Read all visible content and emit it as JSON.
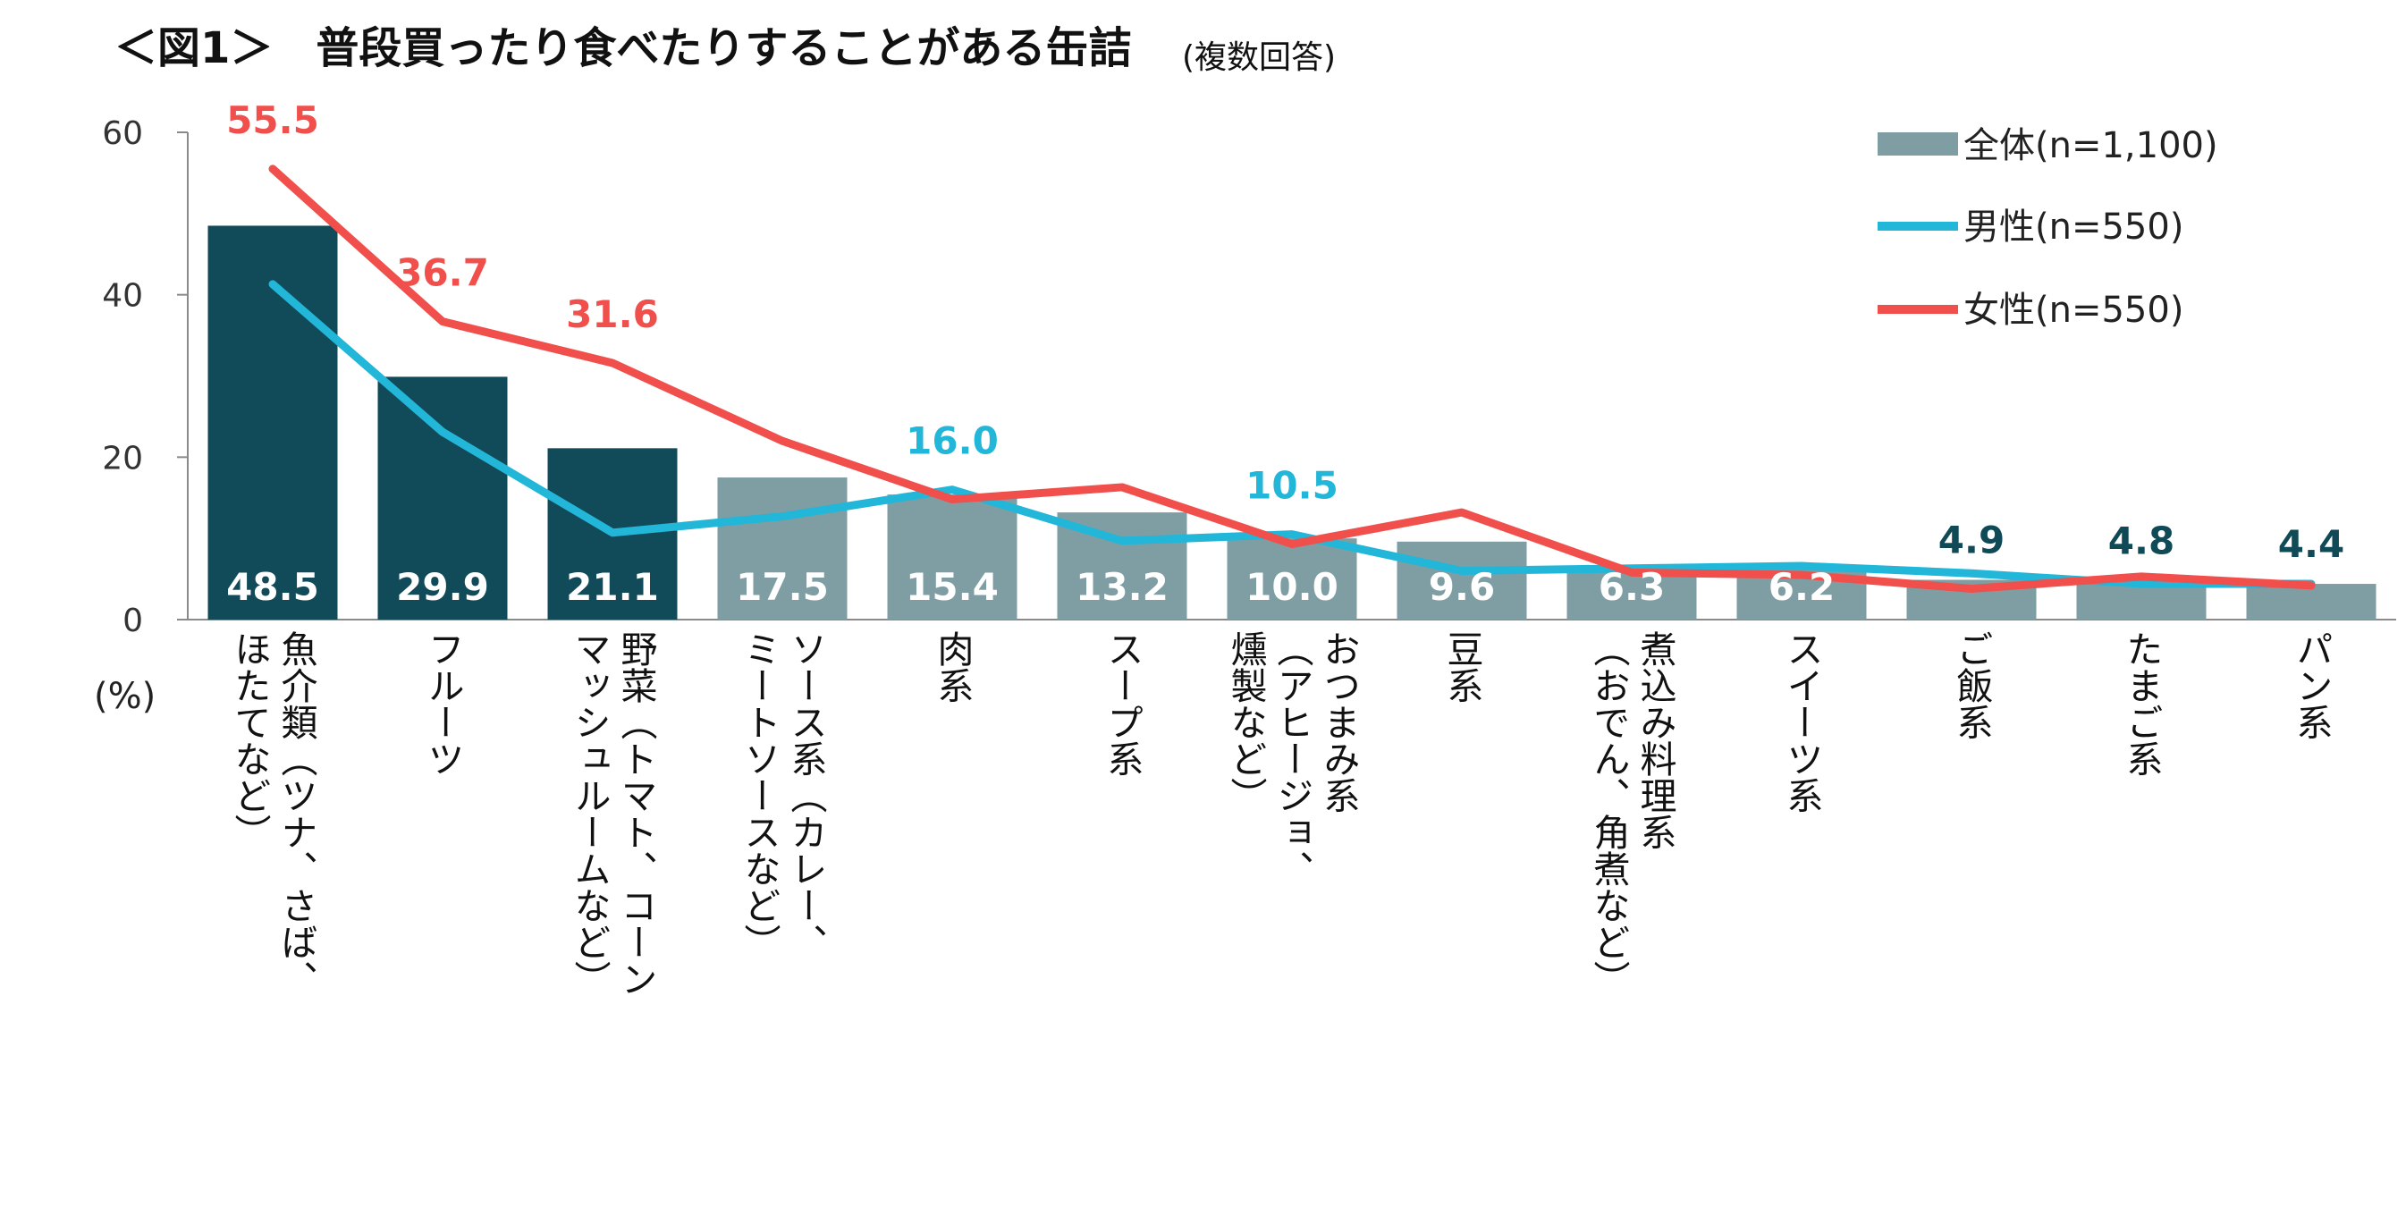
{
  "chart_data": {
    "type": "bar",
    "title": "＜図1＞　普段買ったり食べたりすることがある缶詰",
    "subtitle": "(複数回答)",
    "ylabel": "(%)",
    "ylim": [
      0,
      60
    ],
    "yticks": [
      0,
      20,
      40,
      60
    ],
    "categories": [
      [
        "魚介類（ツナ、さば、",
        "ほたてなど）"
      ],
      [
        "フルーツ"
      ],
      [
        "野菜（トマト、コーン",
        "マッシュルームなど）"
      ],
      [
        "ソース系（カレー、",
        "ミートソースなど）"
      ],
      [
        "肉系"
      ],
      [
        "スープ系"
      ],
      [
        "おつまみ系",
        "（アヒージョ、",
        "燻製など）"
      ],
      [
        "豆系"
      ],
      [
        "煮込み料理系",
        "（おでん、角煮など）"
      ],
      [
        "スイーツ系"
      ],
      [
        "ご飯系"
      ],
      [
        "たまご系"
      ],
      [
        "パン系"
      ]
    ],
    "series": [
      {
        "name": "全体(n=1,100)",
        "kind": "bar",
        "values": [
          48.5,
          29.9,
          21.1,
          17.5,
          15.4,
          13.2,
          10.0,
          9.6,
          6.3,
          6.2,
          4.9,
          4.8,
          4.4
        ],
        "labels": [
          "48.5",
          "29.9",
          "21.1",
          "17.5",
          "15.4",
          "13.2",
          "10.0",
          "9.6",
          "6.3",
          "6.2",
          "4.9",
          "4.8",
          "4.4"
        ],
        "highlight_count": 3,
        "color_highlight": "#114b59",
        "color": "#7f9ea4"
      },
      {
        "name": "男性(n=550)",
        "kind": "line",
        "color": "#22b6d8",
        "values": [
          41.3,
          23.1,
          10.7,
          12.7,
          16.0,
          9.7,
          10.5,
          6.0,
          6.3,
          6.6,
          5.7,
          4.4,
          4.4
        ],
        "shown_labels": [
          {
            "index": 4,
            "text": "16.0"
          },
          {
            "index": 6,
            "text": "10.5"
          }
        ]
      },
      {
        "name": "女性(n=550)",
        "kind": "line",
        "color": "#f04f4c",
        "values": [
          55.5,
          36.7,
          31.6,
          22.0,
          14.8,
          16.3,
          9.3,
          13.2,
          5.8,
          5.5,
          3.8,
          5.3,
          4.2
        ],
        "shown_labels": [
          {
            "index": 0,
            "text": "55.5"
          },
          {
            "index": 1,
            "text": "36.7"
          },
          {
            "index": 2,
            "text": "31.6"
          }
        ]
      }
    ],
    "legend": "top-right",
    "grid": false
  }
}
